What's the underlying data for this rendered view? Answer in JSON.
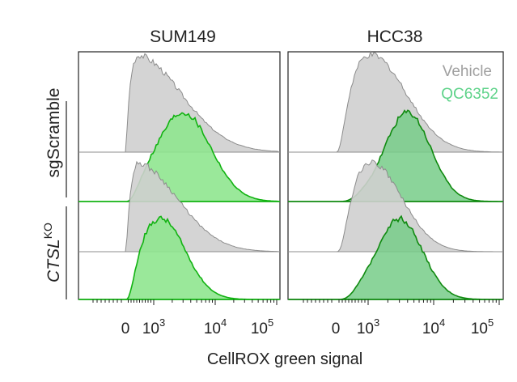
{
  "chart_data": {
    "type": "area",
    "chart_kind": "flow cytometry histogram ridgeline",
    "xlabel": "CellROX green signal",
    "x_scale": "biexponential (linear near 0, log above ~10^3)",
    "x_ticks": [
      {
        "label": "0",
        "value": 0
      },
      {
        "label": "10",
        "sup": "3",
        "value": 1000
      },
      {
        "label": "10",
        "sup": "4",
        "value": 10000
      },
      {
        "label": "10",
        "sup": "5",
        "value": 100000
      }
    ],
    "row_labels": {
      "sgScramble": "sgScramble",
      "ctsl_main": "CTSL",
      "ctsl_sup": "KO"
    },
    "legend": [
      {
        "name": "Vehicle",
        "color": "#a0a0a0"
      },
      {
        "name": "QC6352",
        "color": "#5fd38a"
      }
    ],
    "colors": {
      "vehicle_fill": "#cfcfcf",
      "vehicle_line": "#8c8c8c",
      "drug_left_fill": "#8fe58f",
      "drug_left_line": "#12b312",
      "drug_right_fill": "#77cc88",
      "drug_right_line": "#108a10"
    },
    "panels": [
      {
        "title": "SUM149",
        "tracks": [
          {
            "row": "sgScramble",
            "condition": "Vehicle",
            "peak_x": 500,
            "spread_decades": 0.55
          },
          {
            "row": "sgScramble",
            "condition": "QC6352",
            "peak_x": 3000,
            "spread_decades": 0.45
          },
          {
            "row": "CTSL KO",
            "condition": "Vehicle",
            "peak_x": 500,
            "spread_decades": 0.5
          },
          {
            "row": "CTSL KO",
            "condition": "QC6352",
            "peak_x": 1300,
            "spread_decades": 0.4
          }
        ]
      },
      {
        "title": "HCC38",
        "tracks": [
          {
            "row": "sgScramble",
            "condition": "Vehicle",
            "peak_x": 1100,
            "spread_decades": 0.4
          },
          {
            "row": "sgScramble",
            "condition": "QC6352",
            "peak_x": 4000,
            "spread_decades": 0.35
          },
          {
            "row": "CTSL KO",
            "condition": "Vehicle",
            "peak_x": 1100,
            "spread_decades": 0.35
          },
          {
            "row": "CTSL KO",
            "condition": "QC6352",
            "peak_x": 3000,
            "spread_decades": 0.35
          }
        ]
      }
    ]
  }
}
